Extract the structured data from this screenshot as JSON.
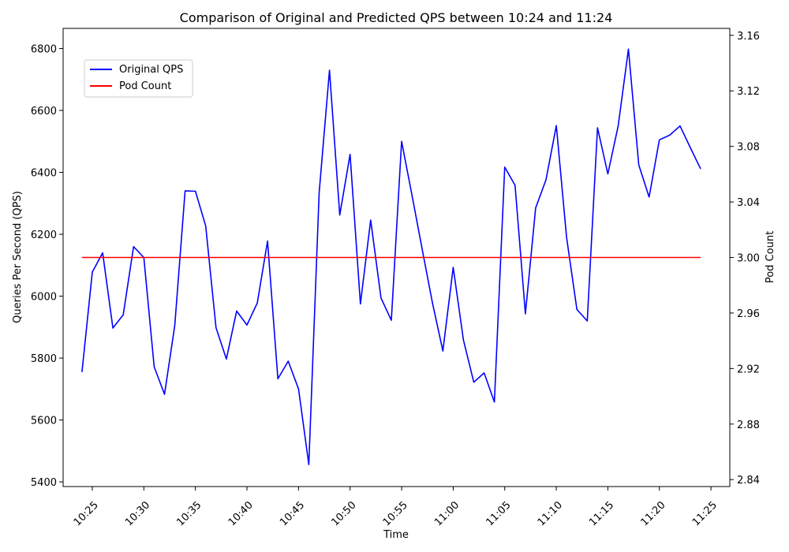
{
  "chart_data": {
    "type": "line",
    "title": "Comparison of Original and Predicted QPS between 10:24 and 11:24",
    "xlabel": "Time",
    "ylabel": "Queries Per Second (QPS)",
    "y2label": "Pod Count",
    "ylim": [
      5385,
      6865
    ],
    "y2lim": [
      2.835,
      3.165
    ],
    "x_ticks": [
      "10:25",
      "10:30",
      "10:35",
      "10:40",
      "10:45",
      "10:50",
      "10:55",
      "11:00",
      "11:05",
      "11:10",
      "11:15",
      "11:20",
      "11:25"
    ],
    "y_ticks": [
      5400,
      5600,
      5800,
      6000,
      6200,
      6400,
      6600,
      6800
    ],
    "y2_ticks": [
      "2.84",
      "2.88",
      "2.92",
      "2.96",
      "3.00",
      "3.04",
      "3.08",
      "3.12",
      "3.16"
    ],
    "legend_position": "upper-left",
    "x": [
      "10:24",
      "10:25",
      "10:26",
      "10:27",
      "10:28",
      "10:29",
      "10:30",
      "10:31",
      "10:32",
      "10:33",
      "10:34",
      "10:35",
      "10:36",
      "10:37",
      "10:38",
      "10:39",
      "10:40",
      "10:41",
      "10:42",
      "10:43",
      "10:44",
      "10:45",
      "10:46",
      "10:47",
      "10:48",
      "10:49",
      "10:50",
      "10:51",
      "10:52",
      "10:53",
      "10:54",
      "10:55",
      "10:56",
      "10:57",
      "10:58",
      "10:59",
      "11:00",
      "11:01",
      "11:02",
      "11:03",
      "11:04",
      "11:05",
      "11:06",
      "11:07",
      "11:08",
      "11:09",
      "11:10",
      "11:11",
      "11:12",
      "11:13",
      "11:14",
      "11:15",
      "11:16",
      "11:17",
      "11:18",
      "11:19",
      "11:20",
      "11:21",
      "11:22",
      "11:23",
      "11:24"
    ],
    "series": [
      {
        "name": "Original QPS",
        "axis": "left",
        "color": "#0000ff",
        "values": [
          5755,
          6078,
          6140,
          5897,
          5940,
          6160,
          6125,
          5772,
          5683,
          5905,
          6340,
          6339,
          6227,
          5898,
          5797,
          5952,
          5907,
          5978,
          6178,
          5733,
          5790,
          5700,
          5456,
          6334,
          6730,
          6262,
          6458,
          5975,
          6246,
          5994,
          5922,
          6500,
          6327,
          6150,
          5977,
          5823,
          6093,
          5858,
          5722,
          5752,
          5658,
          6417,
          6358,
          5943,
          6285,
          6376,
          6551,
          6190,
          5957,
          5920,
          6544,
          6395,
          6550,
          6798,
          6424,
          6320,
          6505,
          6520,
          6550,
          6480,
          6411
        ]
      },
      {
        "name": "Pod Count",
        "axis": "right",
        "color": "#ff0000",
        "values": [
          3,
          3,
          3,
          3,
          3,
          3,
          3,
          3,
          3,
          3,
          3,
          3,
          3,
          3,
          3,
          3,
          3,
          3,
          3,
          3,
          3,
          3,
          3,
          3,
          3,
          3,
          3,
          3,
          3,
          3,
          3,
          3,
          3,
          3,
          3,
          3,
          3,
          3,
          3,
          3,
          3,
          3,
          3,
          3,
          3,
          3,
          3,
          3,
          3,
          3,
          3,
          3,
          3,
          3,
          3,
          3,
          3,
          3,
          3,
          3,
          3
        ]
      }
    ]
  }
}
